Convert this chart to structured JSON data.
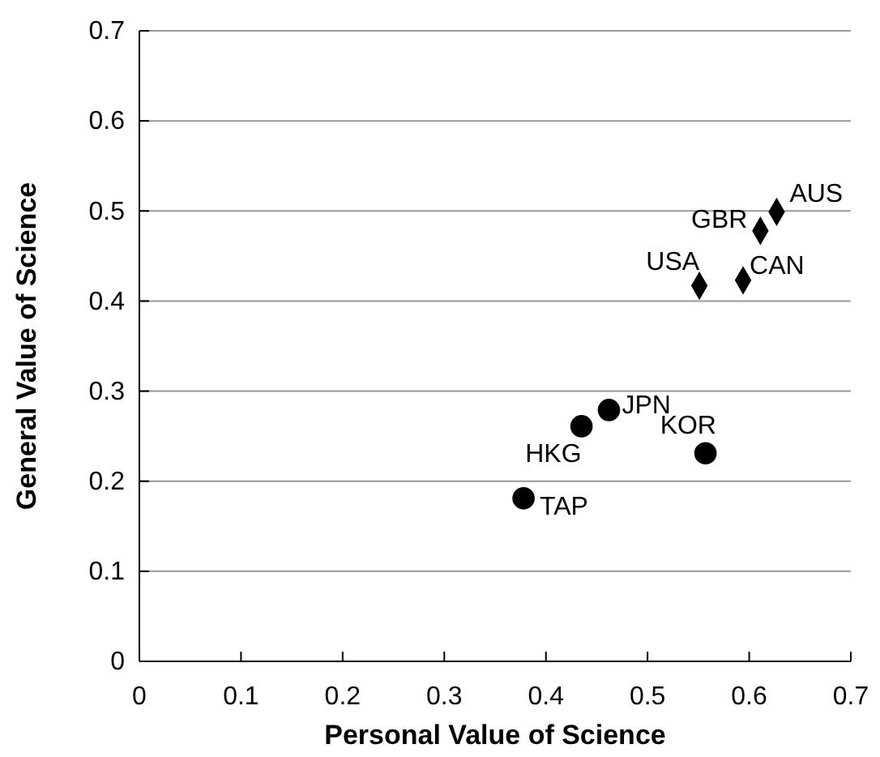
{
  "chart_data": {
    "type": "scatter",
    "xlabel": "Personal Value of Science",
    "ylabel": "General Value of Science",
    "xlim": [
      0,
      0.7
    ],
    "xticks": [
      0,
      0.1,
      0.2,
      0.3,
      0.4,
      0.5,
      0.6,
      0.7
    ],
    "ylim": [
      0,
      0.7
    ],
    "yticks": [
      0,
      0.1,
      0.2,
      0.3,
      0.4,
      0.5,
      0.6,
      0.7
    ],
    "grid": "y",
    "series": [
      {
        "color": "#000000",
        "marker": "diamond",
        "x": [
          0.627,
          0.611,
          0.551,
          0.594
        ],
        "values": [
          0.499,
          0.478,
          0.417,
          0.423
        ]
      },
      {
        "color": "#000000",
        "marker": "circle",
        "x": [
          0.462,
          0.435,
          0.557,
          0.378
        ],
        "values": [
          0.279,
          0.261,
          0.231,
          0.181
        ]
      }
    ],
    "annotations": [
      {
        "text": "AUS",
        "x": 0.627,
        "y": 0.499
      },
      {
        "text": "GBR",
        "x": 0.611,
        "y": 0.478
      },
      {
        "text": "USA",
        "x": 0.551,
        "y": 0.417
      },
      {
        "text": "CAN",
        "x": 0.594,
        "y": 0.423
      },
      {
        "text": "JPN",
        "x": 0.462,
        "y": 0.279
      },
      {
        "text": "HKG",
        "x": 0.435,
        "y": 0.261
      },
      {
        "text": "KOR",
        "x": 0.557,
        "y": 0.231
      },
      {
        "text": "TAP",
        "x": 0.378,
        "y": 0.181
      }
    ]
  }
}
